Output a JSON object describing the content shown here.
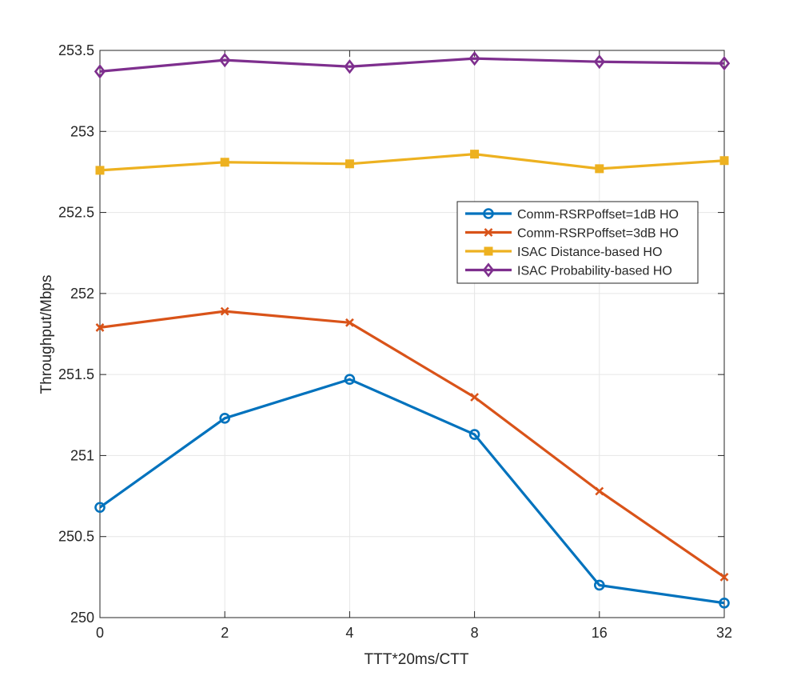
{
  "chart_data": {
    "type": "line",
    "title": "",
    "xlabel": "TTT*20ms/CTT",
    "ylabel": "Throughput/Mbps",
    "categories": [
      "0",
      "2",
      "4",
      "8",
      "16",
      "32"
    ],
    "ylim": [
      250,
      253.5
    ],
    "yticks": [
      250,
      250.5,
      251,
      251.5,
      252,
      252.5,
      253,
      253.5
    ],
    "ytick_labels": [
      "250",
      "250.5",
      "251",
      "251.5",
      "252",
      "252.5",
      "253",
      "253.5"
    ],
    "grid": true,
    "legend_position": "right-center",
    "series": [
      {
        "name": "Comm-RSRPoffset=1dB HO",
        "color": "#0072BD",
        "marker": "circle",
        "values": [
          250.68,
          251.23,
          251.47,
          251.13,
          250.2,
          250.09
        ]
      },
      {
        "name": "Comm-RSRPoffset=3dB HO",
        "color": "#D95319",
        "marker": "x",
        "values": [
          251.79,
          251.89,
          251.82,
          251.36,
          250.78,
          250.25
        ]
      },
      {
        "name": "ISAC Distance-based HO",
        "color": "#EDB120",
        "marker": "square",
        "values": [
          252.76,
          252.81,
          252.8,
          252.86,
          252.77,
          252.82
        ]
      },
      {
        "name": "ISAC Probability-based HO",
        "color": "#7E2F8E",
        "marker": "diamond",
        "values": [
          253.37,
          253.44,
          253.4,
          253.45,
          253.43,
          253.42
        ]
      }
    ]
  }
}
